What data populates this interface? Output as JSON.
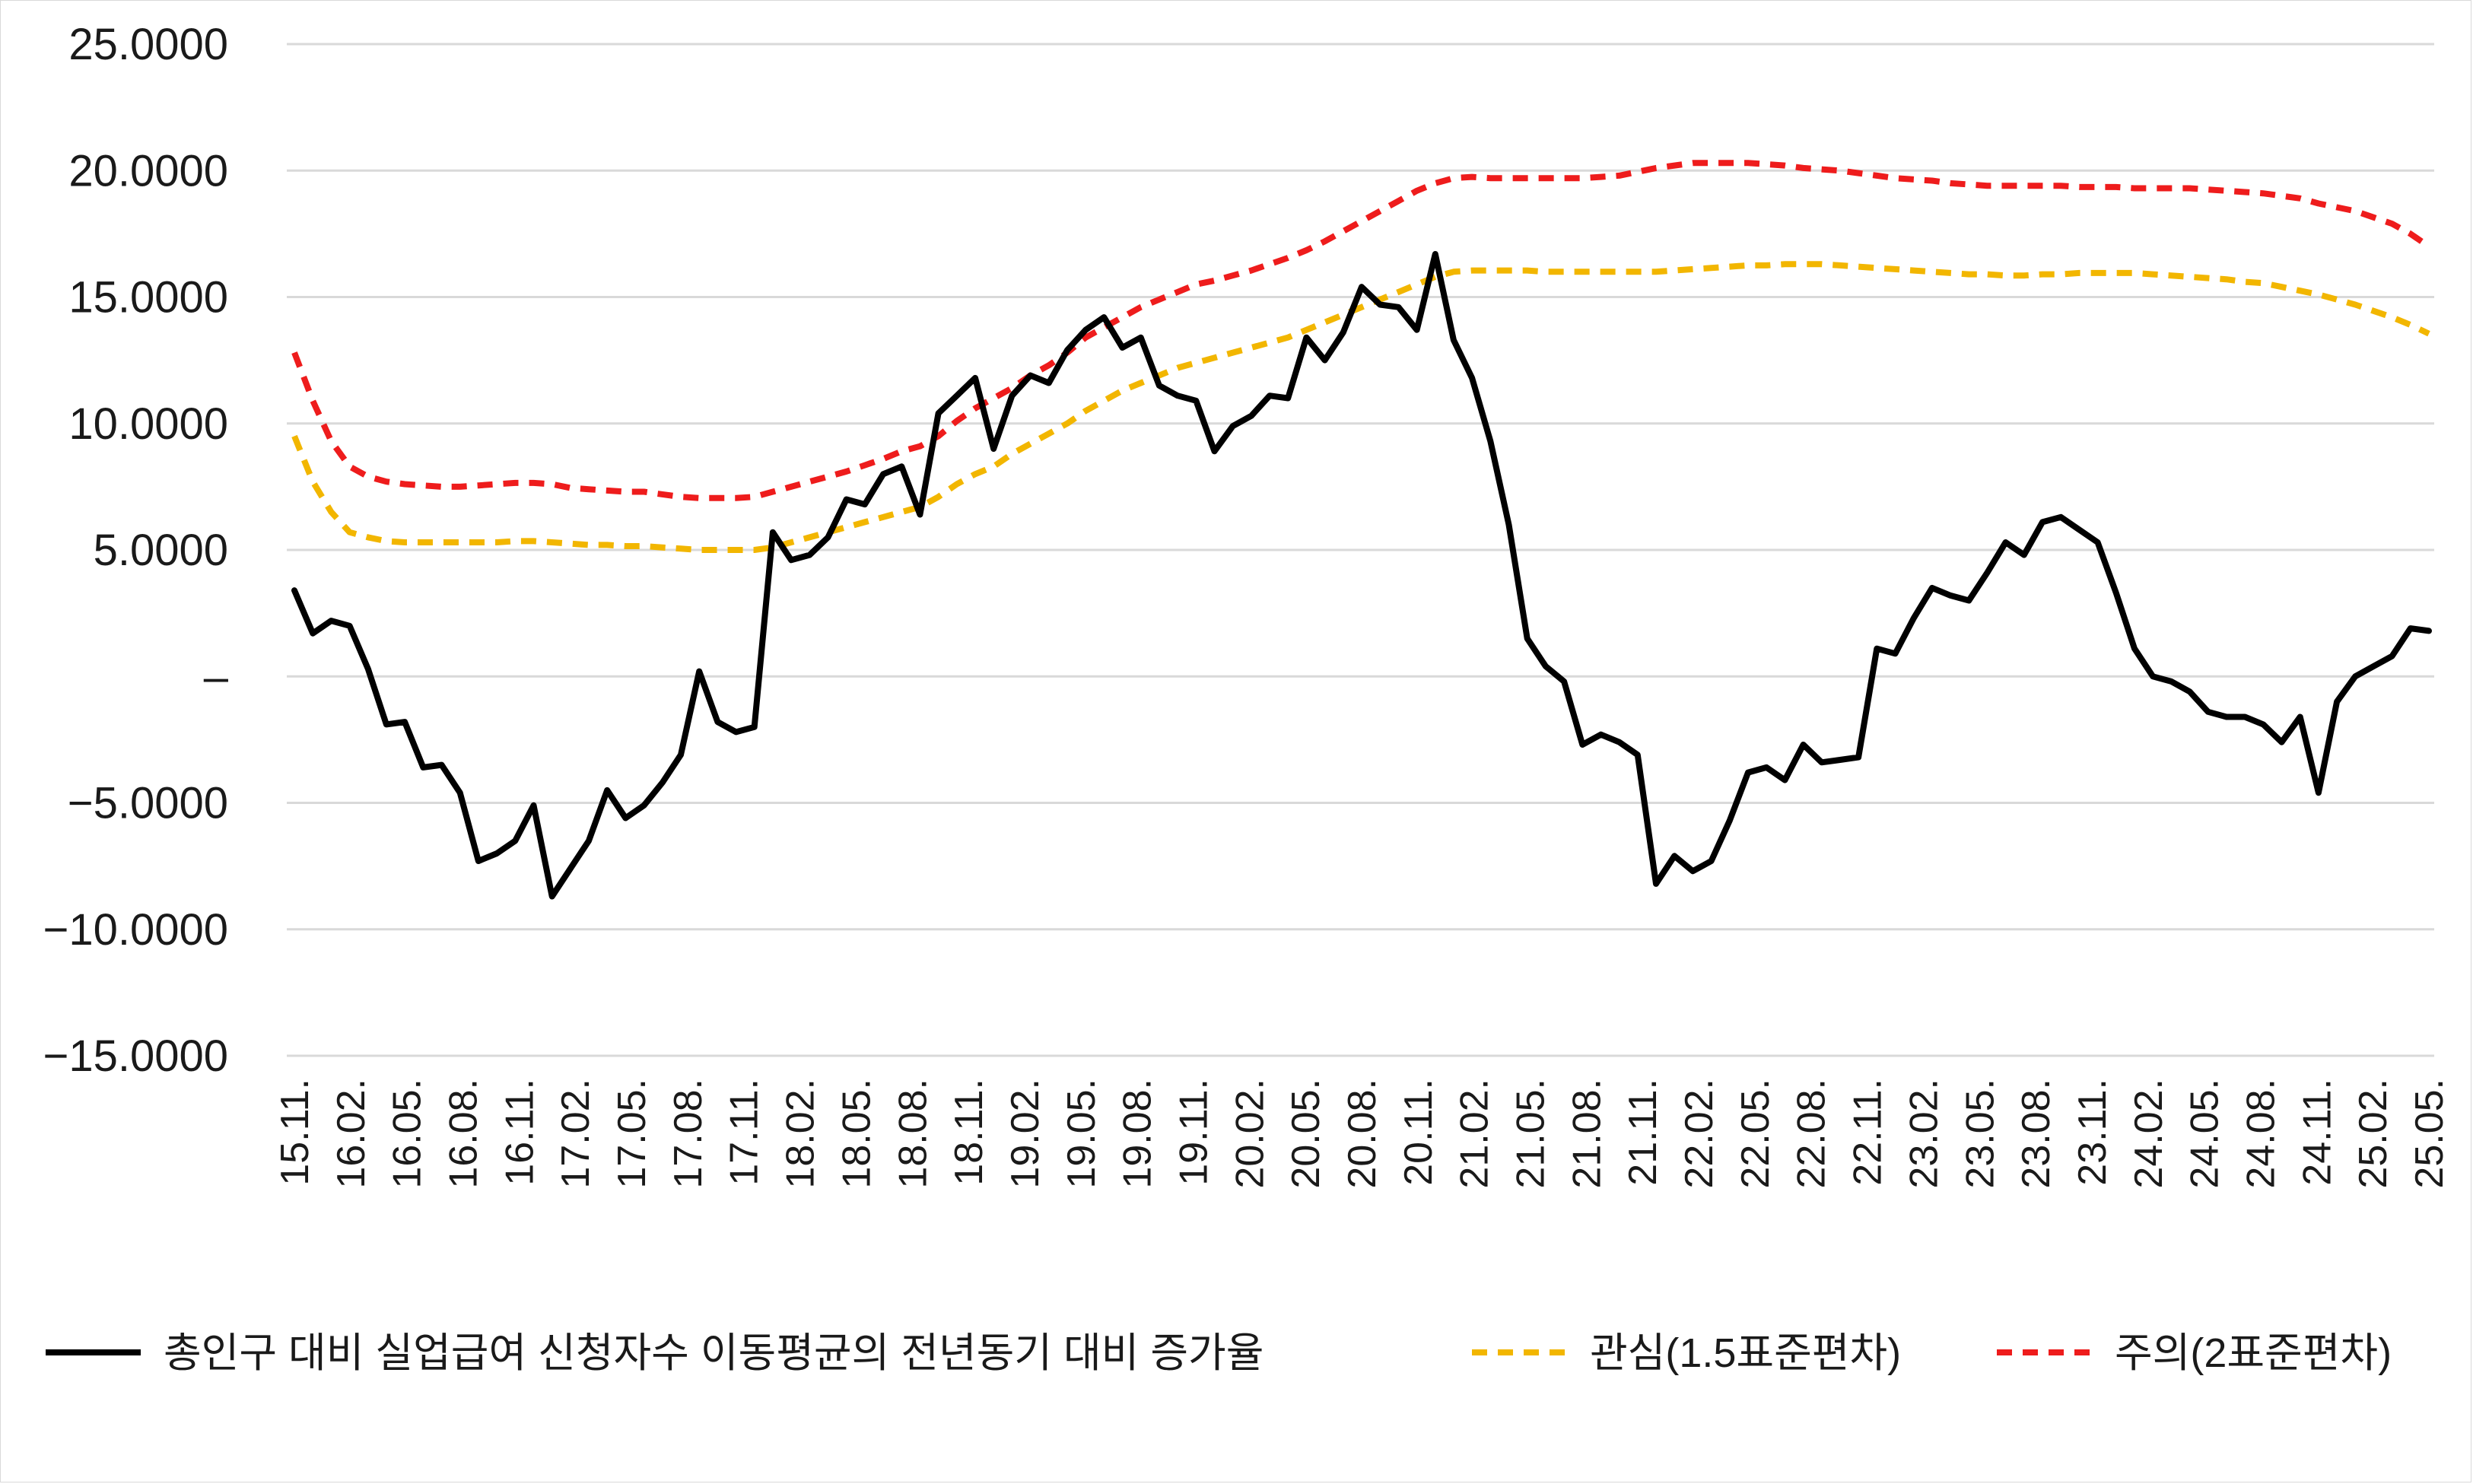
{
  "chart_data": {
    "type": "line",
    "title": "",
    "xlabel": "",
    "ylabel": "",
    "ylim": [
      -15,
      25
    ],
    "y_ticks": [
      {
        "value": 25,
        "label": "25.0000"
      },
      {
        "value": 20,
        "label": "20.0000"
      },
      {
        "value": 15,
        "label": "15.0000"
      },
      {
        "value": 10,
        "label": "10.0000"
      },
      {
        "value": 5,
        "label": "5.0000"
      },
      {
        "value": 0,
        "label": "–"
      },
      {
        "value": -5,
        "label": "−5.0000"
      },
      {
        "value": -10,
        "label": "−10.0000"
      },
      {
        "value": -15,
        "label": "−15.0000"
      }
    ],
    "grid": true,
    "legend_position": "bottom",
    "x_labels": [
      "15.11.",
      "16.02.",
      "16.05.",
      "16.08.",
      "16.11.",
      "17.02.",
      "17.05.",
      "17.08.",
      "17.11.",
      "18.02.",
      "18.05.",
      "18.08.",
      "18.11.",
      "19.02.",
      "19.05.",
      "19.08.",
      "19.11.",
      "20.02.",
      "20.05.",
      "20.08.",
      "20.11.",
      "21.02.",
      "21.05.",
      "21.08.",
      "21.11.",
      "22.02.",
      "22.05.",
      "22.08.",
      "22.11.",
      "23.02.",
      "23.05.",
      "23.08.",
      "23.11.",
      "24.02.",
      "24.05.",
      "24.08.",
      "24.11.",
      "25.02.",
      "25.05."
    ],
    "series": [
      {
        "name": "총인구 대비 실업급여 신청자수 이동평균의 전년동기 대비 증가율",
        "color": "#000000",
        "dash": "solid",
        "values": [
          3.4,
          1.7,
          2.2,
          2.0,
          0.3,
          -1.9,
          -1.8,
          -3.6,
          -3.5,
          -4.6,
          -7.3,
          -7.0,
          -6.5,
          -5.1,
          -8.7,
          -7.6,
          -6.5,
          -4.5,
          -5.6,
          -5.1,
          -4.2,
          -3.1,
          0.2,
          -1.8,
          -2.2,
          -2.0,
          5.7,
          4.6,
          4.8,
          5.5,
          7.0,
          6.8,
          8.0,
          8.3,
          6.4,
          10.4,
          11.1,
          11.8,
          9.0,
          11.1,
          11.9,
          11.6,
          12.9,
          13.7,
          14.2,
          13.0,
          13.4,
          11.5,
          11.1,
          10.9,
          8.9,
          9.9,
          10.3,
          11.1,
          11.0,
          13.4,
          12.5,
          13.6,
          15.4,
          14.7,
          14.6,
          13.7,
          16.7,
          13.3,
          11.8,
          9.3,
          6.0,
          1.5,
          0.4,
          -0.2,
          -2.7,
          -2.3,
          -2.6,
          -3.1,
          -8.2,
          -7.1,
          -7.7,
          -7.3,
          -5.7,
          -3.8,
          -3.6,
          -4.1,
          -2.7,
          -3.4,
          -3.3,
          -3.2,
          1.1,
          0.9,
          2.3,
          3.5,
          3.2,
          3.0,
          4.1,
          5.3,
          4.8,
          6.1,
          6.3,
          5.8,
          5.3,
          3.3,
          1.1,
          0.0,
          -0.2,
          -0.6,
          -1.4,
          -1.6,
          -1.6,
          -1.9,
          -2.6,
          -1.6,
          -4.6,
          -1.0,
          0.0,
          0.4,
          0.8,
          1.9,
          1.8
        ]
      },
      {
        "name": "관심(1.5표준편차)",
        "color": "#f2b600",
        "dash": "dashed",
        "values": [
          9.5,
          7.7,
          6.5,
          5.7,
          5.5,
          5.35,
          5.3,
          5.3,
          5.3,
          5.3,
          5.3,
          5.3,
          5.35,
          5.35,
          5.3,
          5.25,
          5.2,
          5.2,
          5.15,
          5.15,
          5.1,
          5.05,
          5.0,
          5.0,
          5.0,
          5.0,
          5.1,
          5.3,
          5.5,
          5.7,
          5.9,
          6.1,
          6.3,
          6.5,
          6.7,
          7.1,
          7.6,
          8.0,
          8.3,
          8.8,
          9.2,
          9.6,
          10.0,
          10.5,
          10.9,
          11.3,
          11.6,
          11.9,
          12.2,
          12.4,
          12.6,
          12.8,
          13.0,
          13.2,
          13.4,
          13.7,
          14.0,
          14.3,
          14.6,
          14.9,
          15.2,
          15.5,
          15.8,
          16.0,
          16.05,
          16.05,
          16.05,
          16.05,
          16.0,
          16.0,
          16.0,
          16.0,
          16.0,
          16.0,
          16.0,
          16.05,
          16.1,
          16.15,
          16.2,
          16.25,
          16.25,
          16.3,
          16.3,
          16.3,
          16.25,
          16.2,
          16.15,
          16.1,
          16.05,
          16.0,
          15.95,
          15.9,
          15.9,
          15.85,
          15.85,
          15.9,
          15.9,
          15.95,
          15.95,
          15.95,
          15.95,
          15.9,
          15.85,
          15.8,
          15.75,
          15.7,
          15.6,
          15.55,
          15.4,
          15.25,
          15.1,
          14.9,
          14.7,
          14.45,
          14.2,
          13.9,
          13.55
        ]
      },
      {
        "name": "주의(2표준편차)",
        "color": "#ee1c1c",
        "dash": "dashed",
        "values": [
          12.8,
          10.9,
          9.3,
          8.3,
          7.9,
          7.7,
          7.6,
          7.55,
          7.5,
          7.5,
          7.55,
          7.6,
          7.65,
          7.65,
          7.6,
          7.45,
          7.4,
          7.35,
          7.3,
          7.3,
          7.2,
          7.1,
          7.05,
          7.05,
          7.05,
          7.1,
          7.3,
          7.5,
          7.7,
          7.9,
          8.1,
          8.35,
          8.6,
          8.9,
          9.1,
          9.5,
          10.1,
          10.6,
          11.0,
          11.4,
          11.9,
          12.3,
          12.8,
          13.4,
          13.8,
          14.2,
          14.6,
          14.9,
          15.2,
          15.5,
          15.65,
          15.85,
          16.05,
          16.3,
          16.55,
          16.85,
          17.2,
          17.6,
          18.0,
          18.4,
          18.8,
          19.2,
          19.5,
          19.7,
          19.75,
          19.7,
          19.7,
          19.7,
          19.7,
          19.7,
          19.7,
          19.75,
          19.8,
          19.95,
          20.1,
          20.2,
          20.3,
          20.3,
          20.3,
          20.3,
          20.25,
          20.2,
          20.1,
          20.05,
          20.0,
          19.9,
          19.8,
          19.7,
          19.65,
          19.6,
          19.5,
          19.45,
          19.4,
          19.4,
          19.4,
          19.4,
          19.4,
          19.35,
          19.35,
          19.35,
          19.3,
          19.3,
          19.3,
          19.3,
          19.25,
          19.2,
          19.15,
          19.1,
          19.0,
          18.9,
          18.7,
          18.55,
          18.4,
          18.15,
          17.9,
          17.5,
          17.0
        ]
      }
    ]
  }
}
